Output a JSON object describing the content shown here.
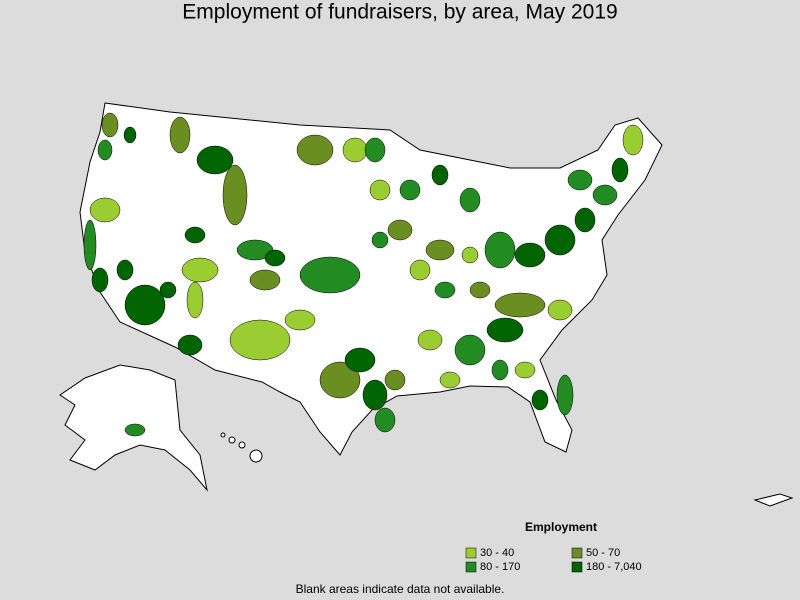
{
  "title": "Employment of fundraisers, by area, May 2019",
  "legend": {
    "title": "Employment",
    "items": [
      {
        "label": "30 - 40",
        "color": "#9acd32"
      },
      {
        "label": "50 - 70",
        "color": "#6b8e23"
      },
      {
        "label": "80 - 170",
        "color": "#228b22"
      },
      {
        "label": "180 - 7,040",
        "color": "#006400"
      }
    ]
  },
  "footnote": "Blank areas indicate data not available."
}
